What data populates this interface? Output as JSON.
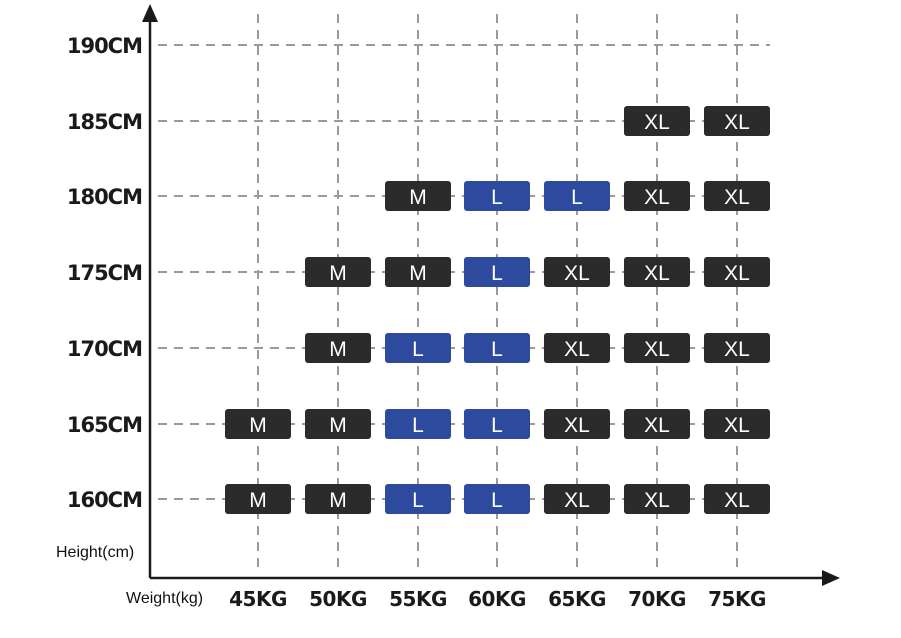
{
  "chart_data": {
    "type": "table",
    "xlabel": "Weight(kg)",
    "ylabel": "Height(cm)",
    "x_categories": [
      "45KG",
      "50KG",
      "55KG",
      "60KG",
      "65KG",
      "70KG",
      "75KG"
    ],
    "y_categories": [
      "190CM",
      "185CM",
      "180CM",
      "175CM",
      "170CM",
      "165CM",
      "160CM"
    ],
    "cells": [
      {
        "height": "185CM",
        "weight": "70KG",
        "size": "XL"
      },
      {
        "height": "185CM",
        "weight": "75KG",
        "size": "XL"
      },
      {
        "height": "180CM",
        "weight": "55KG",
        "size": "M"
      },
      {
        "height": "180CM",
        "weight": "60KG",
        "size": "L"
      },
      {
        "height": "180CM",
        "weight": "65KG",
        "size": "L"
      },
      {
        "height": "180CM",
        "weight": "70KG",
        "size": "XL"
      },
      {
        "height": "180CM",
        "weight": "75KG",
        "size": "XL"
      },
      {
        "height": "175CM",
        "weight": "50KG",
        "size": "M"
      },
      {
        "height": "175CM",
        "weight": "55KG",
        "size": "M"
      },
      {
        "height": "175CM",
        "weight": "60KG",
        "size": "L"
      },
      {
        "height": "175CM",
        "weight": "65KG",
        "size": "XL"
      },
      {
        "height": "175CM",
        "weight": "70KG",
        "size": "XL"
      },
      {
        "height": "175CM",
        "weight": "75KG",
        "size": "XL"
      },
      {
        "height": "170CM",
        "weight": "50KG",
        "size": "M"
      },
      {
        "height": "170CM",
        "weight": "55KG",
        "size": "L"
      },
      {
        "height": "170CM",
        "weight": "60KG",
        "size": "L"
      },
      {
        "height": "170CM",
        "weight": "65KG",
        "size": "XL"
      },
      {
        "height": "170CM",
        "weight": "70KG",
        "size": "XL"
      },
      {
        "height": "170CM",
        "weight": "75KG",
        "size": "XL"
      },
      {
        "height": "165CM",
        "weight": "45KG",
        "size": "M"
      },
      {
        "height": "165CM",
        "weight": "50KG",
        "size": "M"
      },
      {
        "height": "165CM",
        "weight": "55KG",
        "size": "L"
      },
      {
        "height": "165CM",
        "weight": "60KG",
        "size": "L"
      },
      {
        "height": "165CM",
        "weight": "65KG",
        "size": "XL"
      },
      {
        "height": "165CM",
        "weight": "70KG",
        "size": "XL"
      },
      {
        "height": "165CM",
        "weight": "75KG",
        "size": "XL"
      },
      {
        "height": "160CM",
        "weight": "45KG",
        "size": "M"
      },
      {
        "height": "160CM",
        "weight": "50KG",
        "size": "M"
      },
      {
        "height": "160CM",
        "weight": "55KG",
        "size": "L"
      },
      {
        "height": "160CM",
        "weight": "60KG",
        "size": "L"
      },
      {
        "height": "160CM",
        "weight": "65KG",
        "size": "XL"
      },
      {
        "height": "160CM",
        "weight": "70KG",
        "size": "XL"
      },
      {
        "height": "160CM",
        "weight": "75KG",
        "size": "XL"
      }
    ],
    "size_colors": {
      "M": "#2b2b2b",
      "L": "#2d4a9e",
      "XL": "#2b2b2b"
    },
    "grid": true
  }
}
